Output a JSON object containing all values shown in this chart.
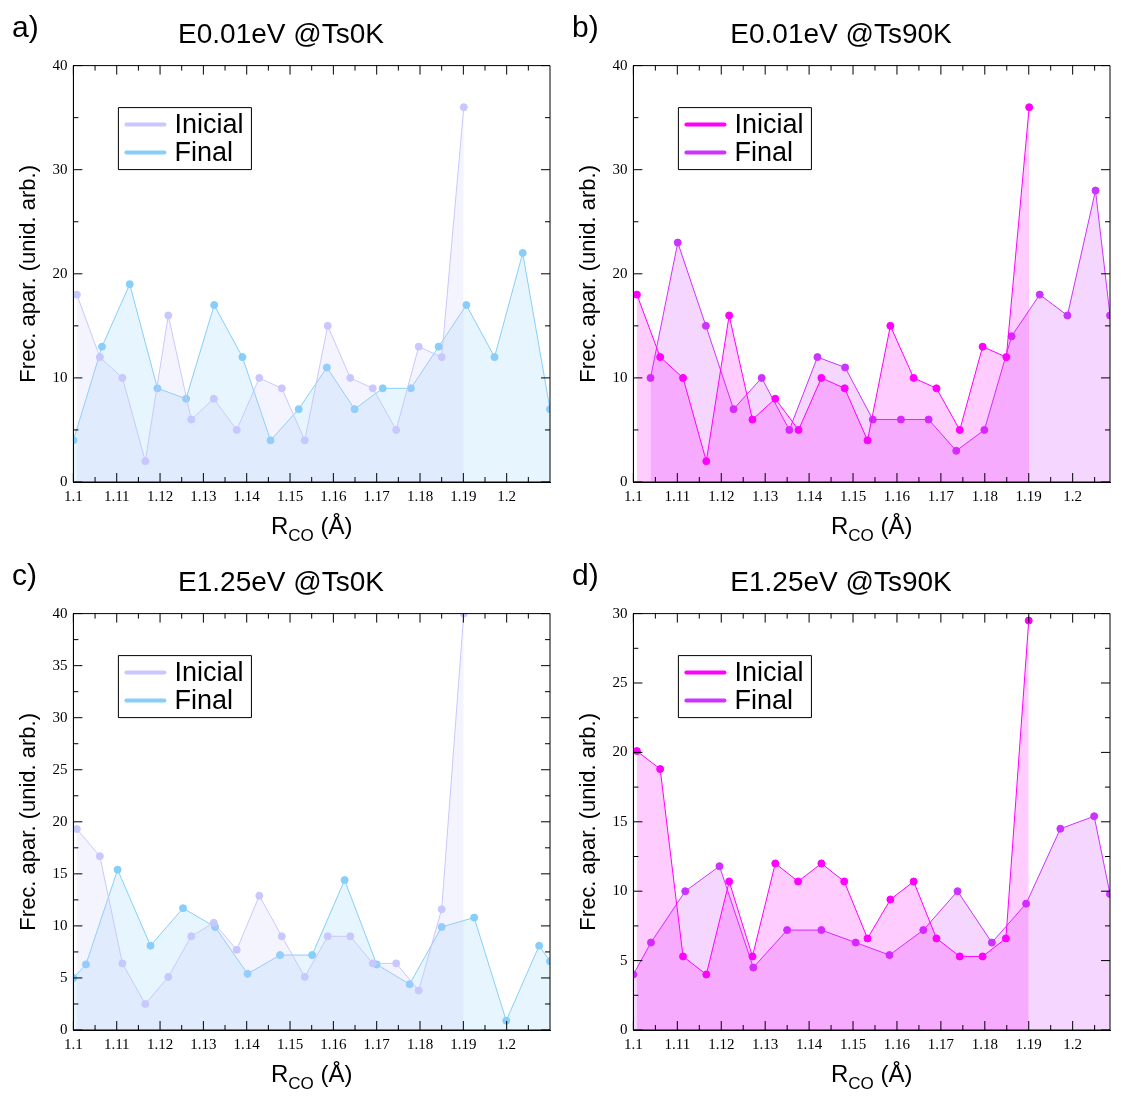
{
  "chart_data": [
    {
      "type": "area",
      "title": "E0.01eV @Ts0K",
      "xlabel": "R$_{CO}$ (Å)",
      "ylabel": "Frec. apar. (unid. arb.)",
      "annotations": [
        "a)"
      ],
      "legend": "top left",
      "marker": "circle",
      "grid": false,
      "xlim": [
        1.1,
        1.21
      ],
      "ylim": [
        0,
        40
      ],
      "xticks": [
        1.1,
        {
          "value": 1.105,
          "label": null
        },
        1.11,
        {
          "value": 1.115,
          "label": null
        },
        1.12,
        {
          "value": 1.125,
          "label": null
        },
        1.13,
        {
          "value": 1.135,
          "label": null
        },
        1.14,
        {
          "value": 1.145,
          "label": null
        },
        1.15,
        {
          "value": 1.155,
          "label": null
        },
        1.16,
        {
          "value": 1.165,
          "label": null
        },
        1.17,
        {
          "value": 1.175,
          "label": null
        },
        1.18,
        {
          "value": 1.185,
          "label": null
        },
        1.19,
        {
          "value": 1.195,
          "label": null
        },
        1.2,
        {
          "value": 1.205,
          "label": null
        }
      ],
      "yticks": [
        0,
        {
          "value": 5,
          "label": null
        },
        10,
        {
          "value": 15,
          "label": null
        },
        20,
        {
          "value": 25,
          "label": null
        },
        30,
        {
          "value": 35,
          "label": null
        },
        40
      ],
      "series": [
        {
          "name": "Inicial",
          "color": "#c8c8ff",
          "x": [
            1.1008,
            1.1061,
            1.1113,
            1.1166,
            1.1219,
            1.1272,
            1.1324,
            1.1377,
            1.1429,
            1.1481,
            1.1534,
            1.1587,
            1.1639,
            1.1691,
            1.1745,
            1.1797,
            1.185,
            1.1901
          ],
          "values": [
            18,
            12,
            10,
            2,
            16,
            6,
            8,
            5,
            10,
            9,
            4,
            15,
            10,
            9,
            5,
            13,
            12,
            36
          ]
        },
        {
          "name": "Final",
          "color": "#87cefa",
          "x": [
            1.1,
            1.1066,
            1.113,
            1.1194,
            1.126,
            1.1325,
            1.139,
            1.1455,
            1.152,
            1.1585,
            1.1649,
            1.1714,
            1.1779,
            1.1843,
            1.1907,
            1.1972,
            1.2037,
            1.21
          ],
          "values": [
            4,
            13,
            19,
            9,
            8,
            17,
            12,
            4,
            7,
            11,
            7,
            9,
            9,
            13,
            17,
            12,
            22,
            7
          ]
        }
      ]
    },
    {
      "type": "area",
      "title": "E0.01eV @Ts90K",
      "xlabel": "R$_{CO}$ (Å)",
      "ylabel": "Frec. apar. (unid. arb.)",
      "annotations": [
        "b)"
      ],
      "legend": "top left",
      "marker": "circle",
      "grid": false,
      "xlim": [
        1.1,
        1.2085
      ],
      "ylim": [
        0,
        40
      ],
      "xticks": [
        1.1,
        {
          "value": 1.105,
          "label": null
        },
        1.11,
        {
          "value": 1.115,
          "label": null
        },
        1.12,
        {
          "value": 1.125,
          "label": null
        },
        1.13,
        {
          "value": 1.135,
          "label": null
        },
        1.14,
        {
          "value": 1.145,
          "label": null
        },
        1.15,
        {
          "value": 1.155,
          "label": null
        },
        1.16,
        {
          "value": 1.165,
          "label": null
        },
        1.17,
        {
          "value": 1.175,
          "label": null
        },
        1.18,
        {
          "value": 1.185,
          "label": null
        },
        1.19,
        {
          "value": 1.195,
          "label": null
        },
        1.2,
        {
          "value": 1.205,
          "label": null
        }
      ],
      "yticks": [
        0,
        {
          "value": 5,
          "label": null
        },
        10,
        {
          "value": 15,
          "label": null
        },
        20,
        {
          "value": 25,
          "label": null
        },
        30,
        {
          "value": 35,
          "label": null
        },
        40
      ],
      "series": [
        {
          "name": "Inicial",
          "color": "#ff00ff",
          "x": [
            1.1008,
            1.1061,
            1.1113,
            1.1166,
            1.1218,
            1.1271,
            1.1323,
            1.1376,
            1.1428,
            1.1481,
            1.1533,
            1.1585,
            1.1638,
            1.169,
            1.1743,
            1.1795,
            1.1849,
            1.1901
          ],
          "values": [
            18,
            12,
            10,
            2,
            16,
            6,
            8,
            5,
            10,
            9,
            4,
            15,
            10,
            9,
            5,
            13,
            12,
            36
          ]
        },
        {
          "name": "Final",
          "color": "#cc33ff",
          "x": [
            1.1039,
            1.1101,
            1.1165,
            1.1228,
            1.1292,
            1.1355,
            1.1419,
            1.1482,
            1.1545,
            1.1609,
            1.1672,
            1.1735,
            1.1799,
            1.1861,
            1.1925,
            1.1988,
            1.2052,
            1.2085
          ],
          "values": [
            10,
            23,
            15,
            7,
            10,
            5,
            12,
            11,
            6,
            6,
            6,
            3,
            5,
            14,
            18,
            16,
            28,
            16
          ]
        }
      ]
    },
    {
      "type": "area",
      "title": "E1.25eV @Ts0K",
      "xlabel": "R$_{CO}$ (Å)",
      "ylabel": "Frec. apar. (unid. arb.)",
      "annotations": [
        "c)"
      ],
      "legend": "top left",
      "marker": "circle",
      "grid": false,
      "xlim": [
        1.1,
        1.21
      ],
      "ylim": [
        0,
        40
      ],
      "xticks": [
        1.1,
        {
          "value": 1.105,
          "label": null
        },
        1.11,
        {
          "value": 1.115,
          "label": null
        },
        1.12,
        {
          "value": 1.125,
          "label": null
        },
        1.13,
        {
          "value": 1.135,
          "label": null
        },
        1.14,
        {
          "value": 1.145,
          "label": null
        },
        1.15,
        {
          "value": 1.155,
          "label": null
        },
        1.16,
        {
          "value": 1.165,
          "label": null
        },
        1.17,
        {
          "value": 1.175,
          "label": null
        },
        1.18,
        {
          "value": 1.185,
          "label": null
        },
        1.19,
        {
          "value": 1.195,
          "label": null
        },
        1.2,
        {
          "value": 1.205,
          "label": null
        }
      ],
      "yticks": [
        0,
        {
          "value": 2.5,
          "label": null
        },
        5,
        {
          "value": 7.5,
          "label": null
        },
        10,
        {
          "value": 12.5,
          "label": null
        },
        15,
        {
          "value": 17.5,
          "label": null
        },
        20,
        {
          "value": 22.5,
          "label": null
        },
        25,
        {
          "value": 27.5,
          "label": null
        },
        30,
        {
          "value": 32.5,
          "label": null
        },
        35,
        {
          "value": 37.5,
          "label": null
        },
        40
      ],
      "series": [
        {
          "name": "Inicial",
          "color": "#c8c8ff",
          "x": [
            1.1008,
            1.1061,
            1.1113,
            1.1166,
            1.1219,
            1.1272,
            1.1324,
            1.1377,
            1.1429,
            1.1481,
            1.1534,
            1.1587,
            1.1639,
            1.1691,
            1.1745,
            1.1797,
            1.185,
            1.1901
          ],
          "values": [
            19.3,
            16.7,
            6.4,
            2.5,
            5.1,
            9,
            10.3,
            7.7,
            12.9,
            9,
            5.1,
            9,
            9,
            6.4,
            6.4,
            3.8,
            11.6,
            40
          ]
        },
        {
          "name": "Final",
          "color": "#87cefa",
          "x": [
            1.1,
            1.1029,
            1.1102,
            1.1178,
            1.1253,
            1.1327,
            1.1402,
            1.1477,
            1.1551,
            1.1626,
            1.17,
            1.1776,
            1.185,
            1.1925,
            1.1999,
            1.2075,
            1.21
          ],
          "values": [
            5,
            6.3,
            15.4,
            8.1,
            11.7,
            9.9,
            5.4,
            7.2,
            7.2,
            14.4,
            6.3,
            4.4,
            9.9,
            10.8,
            0.9,
            8.1,
            6.6
          ]
        }
      ]
    },
    {
      "type": "area",
      "title": "E1.25eV @Ts90K",
      "xlabel": "R$_{CO}$ (Å)",
      "ylabel": "Frec. apar. (unid. arb.)",
      "annotations": [
        "d)"
      ],
      "legend": "top left",
      "marker": "circle",
      "grid": false,
      "xlim": [
        1.1,
        1.2085
      ],
      "ylim": [
        0,
        30
      ],
      "xticks": [
        1.1,
        {
          "value": 1.105,
          "label": null
        },
        1.11,
        {
          "value": 1.115,
          "label": null
        },
        1.12,
        {
          "value": 1.125,
          "label": null
        },
        1.13,
        {
          "value": 1.135,
          "label": null
        },
        1.14,
        {
          "value": 1.145,
          "label": null
        },
        1.15,
        {
          "value": 1.155,
          "label": null
        },
        1.16,
        {
          "value": 1.165,
          "label": null
        },
        1.17,
        {
          "value": 1.175,
          "label": null
        },
        1.18,
        {
          "value": 1.185,
          "label": null
        },
        1.19,
        {
          "value": 1.195,
          "label": null
        },
        1.2,
        {
          "value": 1.205,
          "label": null
        }
      ],
      "yticks": [
        0,
        {
          "value": 2.5,
          "label": null
        },
        5,
        {
          "value": 7.5,
          "label": null
        },
        10,
        {
          "value": 12.5,
          "label": null
        },
        15,
        {
          "value": 17.5,
          "label": null
        },
        20,
        {
          "value": 22.5,
          "label": null
        },
        25,
        {
          "value": 27.5,
          "label": null
        },
        30
      ],
      "series": [
        {
          "name": "Inicial",
          "color": "#ff00ff",
          "x": [
            1.1008,
            1.1061,
            1.1113,
            1.1166,
            1.1218,
            1.1271,
            1.1323,
            1.1375,
            1.1428,
            1.148,
            1.1533,
            1.1585,
            1.1638,
            1.169,
            1.1743,
            1.1795,
            1.1848,
            1.19
          ],
          "values": [
            20.1,
            18.8,
            5.3,
            4,
            10.7,
            5.3,
            12,
            10.7,
            12,
            10.7,
            6.6,
            9.4,
            10.7,
            6.6,
            5.3,
            5.3,
            6.6,
            29.5
          ]
        },
        {
          "name": "Final",
          "color": "#cc33ff",
          "x": [
            1.1,
            1.104,
            1.1118,
            1.1196,
            1.1273,
            1.135,
            1.1428,
            1.1506,
            1.1583,
            1.166,
            1.1738,
            1.1816,
            1.1894,
            1.1972,
            1.2049,
            1.2085
          ],
          "values": [
            4,
            6.3,
            10,
            11.8,
            4.5,
            7.2,
            7.2,
            6.3,
            5.4,
            7.2,
            10,
            6.3,
            9.1,
            14.5,
            15.4,
            9.8
          ]
        }
      ]
    }
  ]
}
